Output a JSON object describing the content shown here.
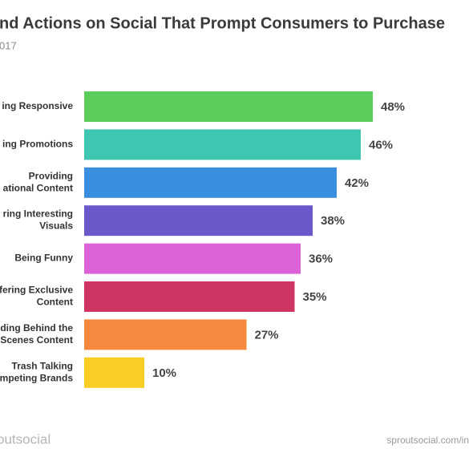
{
  "chart_data": {
    "type": "hbar",
    "title": "nd Actions on Social That Prompt Consumers to Purchase",
    "subtitle": "017",
    "categories": [
      [
        "ing Responsive"
      ],
      [
        "ing Promotions"
      ],
      [
        "Providing",
        "ational Content"
      ],
      [
        "ring Interesting",
        "Visuals"
      ],
      [
        "Being Funny"
      ],
      [
        "fering Exclusive",
        "Content"
      ],
      [
        "ding Behind the",
        "Scenes Content"
      ],
      [
        "Trash Talking",
        "mpeting Brands"
      ]
    ],
    "values": [
      48,
      46,
      42,
      38,
      36,
      35,
      27,
      10
    ],
    "value_labels": [
      "48%",
      "46%",
      "42%",
      "38%",
      "36%",
      "35%",
      "27%",
      "10%"
    ],
    "colors": [
      "#5ccd5a",
      "#3fc6b0",
      "#3a8ee0",
      "#6a57c9",
      "#dc62d8",
      "#cf3562",
      "#f58a3e",
      "#f9cd24"
    ],
    "logo": "outsocial",
    "source": "sproutsocial.com/in"
  }
}
